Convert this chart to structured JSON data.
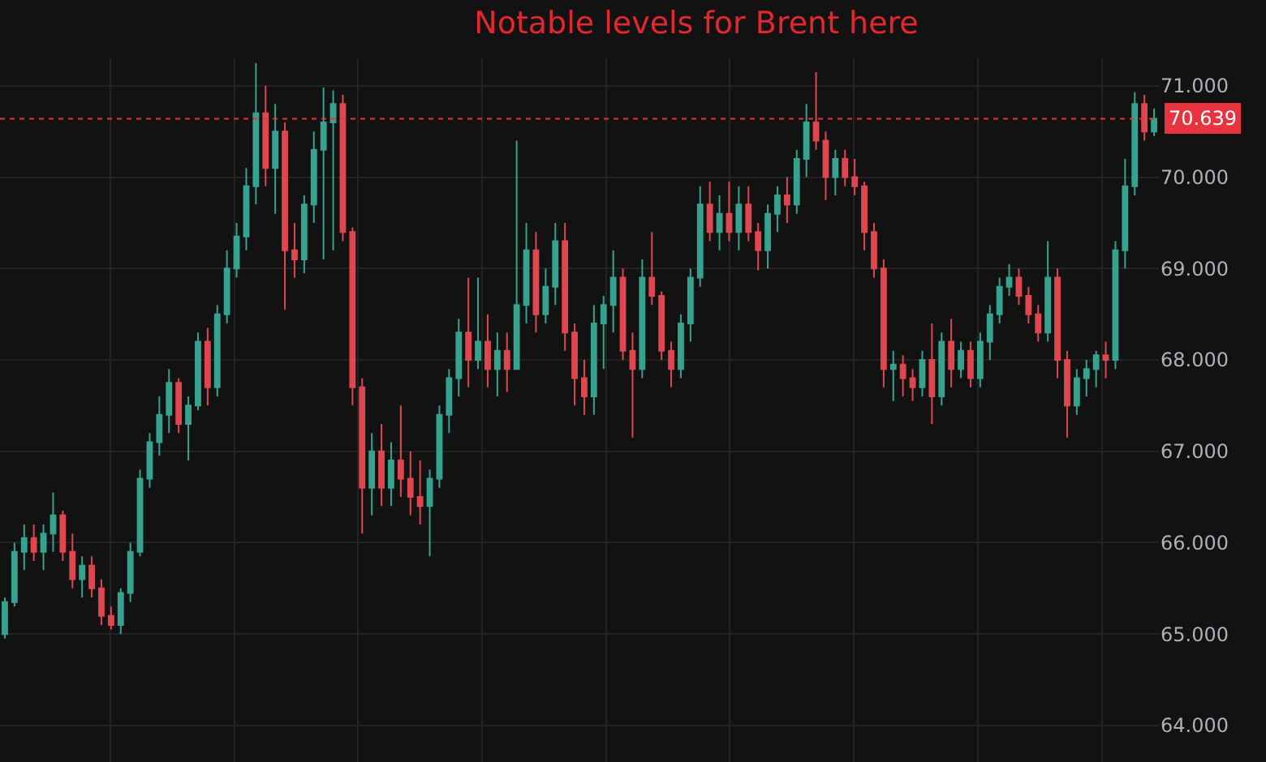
{
  "chart_data": {
    "type": "candlestick",
    "title": "Notable levels for Brent here",
    "categories": [
      null,
      null,
      null,
      null,
      null,
      null,
      null,
      null,
      null,
      null,
      null,
      null,
      null,
      null,
      null,
      null,
      null,
      null,
      null,
      null,
      null,
      null,
      null,
      null,
      null,
      null,
      null,
      null,
      null,
      null,
      null,
      null,
      null,
      null,
      null,
      null,
      null,
      null,
      null,
      null,
      null,
      null,
      null,
      null,
      null,
      null,
      null,
      null,
      null,
      null,
      null,
      null,
      null,
      null,
      null,
      null,
      null,
      null,
      null,
      null,
      null,
      null,
      null,
      null,
      null,
      null,
      null,
      null,
      null,
      null,
      null,
      null,
      null,
      null,
      null,
      null,
      null,
      null,
      null,
      null,
      null,
      null,
      null,
      null,
      null,
      null,
      null,
      null,
      null,
      null,
      null,
      null,
      null,
      null,
      null,
      null,
      null,
      null,
      null,
      null,
      null,
      null,
      null,
      null,
      null,
      null,
      null,
      null,
      null,
      null,
      null,
      null,
      null,
      null,
      null,
      null,
      null,
      null,
      null,
      null
    ],
    "ohlc": [
      [
        65.0,
        65.4,
        64.95,
        65.35
      ],
      [
        65.35,
        66.0,
        65.3,
        65.9
      ],
      [
        65.9,
        66.2,
        65.7,
        66.05
      ],
      [
        66.05,
        66.2,
        65.8,
        65.9
      ],
      [
        65.9,
        66.2,
        65.7,
        66.1
      ],
      [
        66.1,
        66.55,
        65.9,
        66.3
      ],
      [
        66.3,
        66.35,
        65.8,
        65.9
      ],
      [
        65.9,
        66.1,
        65.5,
        65.6
      ],
      [
        65.6,
        65.85,
        65.4,
        65.75
      ],
      [
        65.75,
        65.85,
        65.4,
        65.5
      ],
      [
        65.5,
        65.6,
        65.1,
        65.2
      ],
      [
        65.2,
        65.3,
        65.05,
        65.1
      ],
      [
        65.1,
        65.5,
        65.0,
        65.45
      ],
      [
        65.45,
        66.0,
        65.35,
        65.9
      ],
      [
        65.9,
        66.8,
        65.85,
        66.7
      ],
      [
        66.7,
        67.2,
        66.6,
        67.1
      ],
      [
        67.1,
        67.6,
        66.95,
        67.4
      ],
      [
        67.4,
        67.9,
        67.2,
        67.75
      ],
      [
        67.75,
        67.8,
        67.2,
        67.3
      ],
      [
        67.3,
        67.6,
        66.9,
        67.5
      ],
      [
        67.5,
        68.3,
        67.45,
        68.2
      ],
      [
        68.2,
        68.35,
        67.5,
        67.7
      ],
      [
        67.7,
        68.6,
        67.6,
        68.5
      ],
      [
        68.5,
        69.2,
        68.4,
        69.0
      ],
      [
        69.0,
        69.5,
        68.9,
        69.35
      ],
      [
        69.35,
        70.1,
        69.2,
        69.9
      ],
      [
        69.9,
        71.25,
        69.7,
        70.7
      ],
      [
        70.7,
        71.0,
        69.9,
        70.1
      ],
      [
        70.1,
        70.8,
        69.6,
        70.5
      ],
      [
        70.5,
        70.6,
        68.55,
        69.2
      ],
      [
        69.2,
        69.5,
        68.9,
        69.1
      ],
      [
        69.1,
        69.8,
        68.95,
        69.7
      ],
      [
        69.7,
        70.5,
        69.5,
        70.3
      ],
      [
        70.3,
        70.98,
        69.1,
        70.6
      ],
      [
        70.6,
        70.95,
        69.2,
        70.8
      ],
      [
        70.8,
        70.9,
        69.3,
        69.4
      ],
      [
        69.4,
        69.45,
        67.5,
        67.7
      ],
      [
        67.7,
        67.8,
        66.1,
        66.6
      ],
      [
        66.6,
        67.2,
        66.3,
        67.0
      ],
      [
        67.0,
        67.3,
        66.4,
        66.6
      ],
      [
        66.6,
        67.1,
        66.4,
        66.9
      ],
      [
        66.9,
        67.5,
        66.5,
        66.7
      ],
      [
        66.7,
        67.0,
        66.3,
        66.5
      ],
      [
        66.5,
        66.9,
        66.2,
        66.4
      ],
      [
        66.4,
        66.8,
        65.85,
        66.7
      ],
      [
        66.7,
        67.5,
        66.6,
        67.4
      ],
      [
        67.4,
        67.9,
        67.2,
        67.8
      ],
      [
        67.8,
        68.45,
        67.6,
        68.3
      ],
      [
        68.3,
        68.9,
        67.7,
        68.0
      ],
      [
        68.0,
        68.9,
        67.9,
        68.2
      ],
      [
        68.2,
        68.5,
        67.7,
        67.9
      ],
      [
        67.9,
        68.3,
        67.6,
        68.1
      ],
      [
        68.1,
        68.3,
        67.65,
        67.9
      ],
      [
        67.9,
        70.4,
        67.9,
        68.6
      ],
      [
        68.6,
        69.5,
        68.4,
        69.2
      ],
      [
        69.2,
        69.4,
        68.3,
        68.5
      ],
      [
        68.5,
        69.0,
        68.4,
        68.8
      ],
      [
        68.8,
        69.5,
        68.6,
        69.3
      ],
      [
        69.3,
        69.5,
        68.1,
        68.3
      ],
      [
        68.3,
        68.4,
        67.5,
        67.8
      ],
      [
        67.8,
        68.0,
        67.4,
        67.6
      ],
      [
        67.6,
        68.6,
        67.4,
        68.4
      ],
      [
        68.4,
        68.7,
        67.9,
        68.6
      ],
      [
        68.6,
        69.2,
        68.3,
        68.9
      ],
      [
        68.9,
        69.0,
        68.0,
        68.1
      ],
      [
        68.1,
        68.3,
        67.15,
        67.9
      ],
      [
        67.9,
        69.1,
        67.8,
        68.9
      ],
      [
        68.9,
        69.4,
        68.6,
        68.7
      ],
      [
        68.7,
        68.75,
        68.0,
        68.1
      ],
      [
        68.1,
        68.2,
        67.7,
        67.9
      ],
      [
        67.9,
        68.5,
        67.8,
        68.4
      ],
      [
        68.4,
        69.0,
        68.2,
        68.9
      ],
      [
        68.9,
        69.9,
        68.8,
        69.7
      ],
      [
        69.7,
        69.95,
        69.3,
        69.4
      ],
      [
        69.4,
        69.8,
        69.2,
        69.6
      ],
      [
        69.6,
        69.95,
        69.3,
        69.4
      ],
      [
        69.4,
        69.9,
        69.2,
        69.7
      ],
      [
        69.7,
        69.9,
        69.3,
        69.4
      ],
      [
        69.4,
        69.5,
        68.98,
        69.2
      ],
      [
        69.2,
        69.7,
        69.0,
        69.6
      ],
      [
        69.6,
        69.9,
        69.4,
        69.8
      ],
      [
        69.8,
        70.0,
        69.5,
        69.7
      ],
      [
        69.7,
        70.3,
        69.6,
        70.2
      ],
      [
        70.2,
        70.8,
        70.0,
        70.6
      ],
      [
        70.6,
        71.15,
        70.3,
        70.4
      ],
      [
        70.4,
        70.5,
        69.75,
        70.0
      ],
      [
        70.0,
        70.3,
        69.8,
        70.2
      ],
      [
        70.2,
        70.3,
        69.9,
        70.0
      ],
      [
        70.0,
        70.2,
        69.8,
        69.9
      ],
      [
        69.9,
        69.95,
        69.2,
        69.4
      ],
      [
        69.4,
        69.5,
        68.9,
        69.0
      ],
      [
        69.0,
        69.1,
        67.7,
        67.9
      ],
      [
        67.9,
        68.1,
        67.55,
        67.95
      ],
      [
        67.95,
        68.05,
        67.6,
        67.8
      ],
      [
        67.8,
        67.9,
        67.55,
        67.7
      ],
      [
        67.7,
        68.1,
        67.6,
        68.0
      ],
      [
        68.0,
        68.4,
        67.3,
        67.6
      ],
      [
        67.6,
        68.3,
        67.5,
        68.2
      ],
      [
        68.2,
        68.45,
        67.7,
        67.9
      ],
      [
        67.9,
        68.2,
        67.8,
        68.1
      ],
      [
        68.1,
        68.2,
        67.7,
        67.8
      ],
      [
        67.8,
        68.3,
        67.7,
        68.2
      ],
      [
        68.2,
        68.6,
        68.0,
        68.5
      ],
      [
        68.5,
        68.9,
        68.4,
        68.8
      ],
      [
        68.8,
        69.05,
        68.7,
        68.9
      ],
      [
        68.9,
        69.0,
        68.6,
        68.7
      ],
      [
        68.7,
        68.8,
        68.4,
        68.5
      ],
      [
        68.5,
        68.6,
        68.2,
        68.3
      ],
      [
        68.3,
        69.3,
        68.2,
        68.9
      ],
      [
        68.9,
        69.0,
        67.8,
        68.0
      ],
      [
        68.0,
        68.1,
        67.15,
        67.5
      ],
      [
        67.5,
        67.9,
        67.4,
        67.8
      ],
      [
        67.8,
        68.0,
        67.6,
        67.9
      ],
      [
        67.9,
        68.1,
        67.7,
        68.05
      ],
      [
        68.05,
        68.2,
        67.8,
        68.0
      ],
      [
        68.0,
        69.3,
        67.9,
        69.2
      ],
      [
        69.2,
        70.2,
        69.0,
        69.9
      ],
      [
        69.9,
        70.93,
        69.8,
        70.8
      ],
      [
        70.8,
        70.9,
        70.4,
        70.5
      ],
      [
        70.5,
        70.75,
        70.45,
        70.639
      ]
    ],
    "colors": [
      "#35a38f",
      "#35a38f",
      "#35a38f",
      "#e0464f",
      "#35a38f",
      "#35a38f",
      "#e0464f",
      "#e0464f",
      "#35a38f",
      "#e0464f",
      "#e0464f",
      "#e0464f",
      "#35a38f",
      "#35a38f",
      "#35a38f",
      "#35a38f",
      "#35a38f",
      "#35a38f",
      "#e0464f",
      "#35a38f",
      "#35a38f",
      "#e0464f",
      "#35a38f",
      "#35a38f",
      "#35a38f",
      "#35a38f",
      "#35a38f",
      "#e0464f",
      "#35a38f",
      "#e0464f",
      "#e0464f",
      "#35a38f",
      "#35a38f",
      "#35a38f",
      "#35a38f",
      "#e0464f",
      "#e0464f",
      "#e0464f",
      "#35a38f",
      "#e0464f",
      "#35a38f",
      "#e0464f",
      "#e0464f",
      "#e0464f",
      "#35a38f",
      "#35a38f",
      "#35a38f",
      "#35a38f",
      "#e0464f",
      "#35a38f",
      "#e0464f",
      "#35a38f",
      "#e0464f",
      "#35a38f",
      "#35a38f",
      "#e0464f",
      "#35a38f",
      "#35a38f",
      "#e0464f",
      "#e0464f",
      "#e0464f",
      "#35a38f",
      "#35a38f",
      "#35a38f",
      "#e0464f",
      "#e0464f",
      "#35a38f",
      "#e0464f",
      "#e0464f",
      "#e0464f",
      "#35a38f",
      "#35a38f",
      "#35a38f",
      "#e0464f",
      "#35a38f",
      "#e0464f",
      "#35a38f",
      "#e0464f",
      "#e0464f",
      "#35a38f",
      "#35a38f",
      "#e0464f",
      "#35a38f",
      "#35a38f",
      "#e0464f",
      "#e0464f",
      "#35a38f",
      "#e0464f",
      "#e0464f",
      "#e0464f",
      "#e0464f",
      "#e0464f",
      "#35a38f",
      "#e0464f",
      "#e0464f",
      "#35a38f",
      "#e0464f",
      "#35a38f",
      "#e0464f",
      "#35a38f",
      "#e0464f",
      "#35a38f",
      "#35a38f",
      "#35a38f",
      "#35a38f",
      "#e0464f",
      "#e0464f",
      "#e0464f",
      "#35a38f",
      "#e0464f",
      "#e0464f",
      "#35a38f",
      "#35a38f",
      "#35a38f",
      "#e0464f",
      "#35a38f",
      "#35a38f",
      "#35a38f",
      "#e0464f",
      "#35a38f"
    ],
    "ylim": [
      63.6,
      71.3
    ],
    "yticks": [
      {
        "value": 64,
        "label": "64.000"
      },
      {
        "value": 65,
        "label": "65.000"
      },
      {
        "value": 66,
        "label": "66.000"
      },
      {
        "value": 67,
        "label": "67.000"
      },
      {
        "value": 68,
        "label": "68.000"
      },
      {
        "value": 69,
        "label": "69.000"
      },
      {
        "value": 70,
        "label": "70.000"
      },
      {
        "value": 71,
        "label": "71.000"
      }
    ],
    "ref_lines": [
      {
        "axis": "y",
        "value": 70.639,
        "label": "70.639",
        "color": "#e8343f",
        "line_style": "dotted"
      }
    ],
    "grid": true,
    "tick_labels": "y"
  }
}
